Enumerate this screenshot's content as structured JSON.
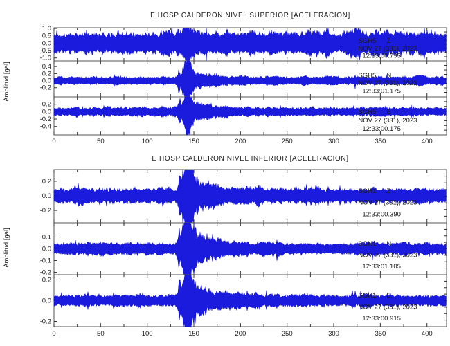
{
  "colors": {
    "trace": "#1212dd",
    "axis": "#555555",
    "tick": "#333333",
    "background": "#ffffff"
  },
  "chart_data": [
    {
      "type": "line",
      "subtype": "seismogram",
      "title": "E HOSP CALDERON NIVEL SUPERIOR [ACELERACION]",
      "ylabel": "Amplitud [gal]",
      "xlim": [
        0,
        421
      ],
      "x_ticks_major": [
        0,
        50,
        100,
        150,
        200,
        250,
        300,
        350,
        400
      ],
      "x_tick_minor_step": 25,
      "grid": false,
      "legend": "none",
      "traces": [
        {
          "station": "SGH5",
          "component": "Z",
          "date_label": "NOV 27 (331), 2023",
          "start_time": "12:33:00.795",
          "y_ticks": [
            1.0,
            0.5,
            0.0,
            -0.5,
            -1.0
          ],
          "ylim": [
            -1.2,
            1.05
          ],
          "noise_amp": 0.52,
          "event_time": 141,
          "event_peak": 0.75,
          "seed": 101
        },
        {
          "station": "SGH5",
          "component": "N",
          "date_label": "NOV 27 (331), 2023",
          "start_time": "12:33:01.175",
          "y_ticks": [
            0.4,
            0.2,
            0.0,
            -0.2
          ],
          "ylim": [
            -0.46,
            0.56
          ],
          "noise_amp": 0.082,
          "event_time": 142,
          "event_peak": 0.6,
          "seed": 202
        },
        {
          "station": "SGH5",
          "component": "E",
          "date_label": "NOV 27 (331), 2023",
          "start_time": "12:33:00.175",
          "y_ticks": [
            0.2,
            0.0,
            -0.2,
            -0.4
          ],
          "ylim": [
            -0.63,
            0.4
          ],
          "noise_amp": 0.082,
          "event_time": 143,
          "event_peak": 0.62,
          "seed": 303
        }
      ]
    },
    {
      "type": "line",
      "subtype": "seismogram",
      "title": "E HOSP CALDERON NIVEL INFERIOR [ACELERACION]",
      "ylabel": "Amplitud [gal]",
      "xlim": [
        0,
        421
      ],
      "x_ticks_major": [
        0,
        50,
        100,
        150,
        200,
        250,
        300,
        350,
        400
      ],
      "x_tick_minor_step": 25,
      "grid": false,
      "legend": "none",
      "traces": [
        {
          "station": "SGH1",
          "component": "Z",
          "date_label": "NOV 27 (331), 2023",
          "start_time": "12:33:00.390",
          "y_ticks": [
            0.2,
            0.0,
            -0.2
          ],
          "ylim": [
            -0.37,
            0.36
          ],
          "noise_amp": 0.072,
          "event_time": 143,
          "event_peak": 0.55,
          "seed": 404
        },
        {
          "station": "SGH1",
          "component": "N",
          "date_label": "NOV 27 (331), 2023",
          "start_time": "12:33:01.105",
          "y_ticks": [
            0.1,
            0.0,
            -0.1,
            -0.2
          ],
          "ylim": [
            -0.22,
            0.22
          ],
          "noise_amp": 0.034,
          "event_time": 142,
          "event_peak": 0.38,
          "seed": 505
        },
        {
          "station": "SGH1",
          "component": "E",
          "date_label": "NOV 27 (331), 2023",
          "start_time": "12:33:00.915",
          "y_ticks": [
            0.2,
            0.0,
            -0.2
          ],
          "ylim": [
            -0.25,
            0.25
          ],
          "noise_amp": 0.04,
          "event_time": 143,
          "event_peak": 0.42,
          "seed": 606
        }
      ]
    }
  ]
}
